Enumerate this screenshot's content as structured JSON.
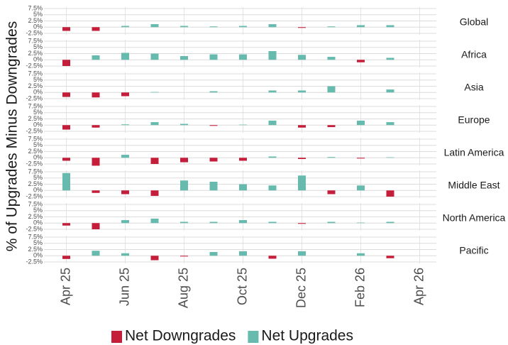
{
  "ylabel": "% of Upgrades Minus Downgrades",
  "chart_data": [
    {
      "type": "bar",
      "title": "Global",
      "x": [
        "2025-04",
        "2025-05",
        "2025-06",
        "2025-07",
        "2025-08",
        "2025-09",
        "2025-10",
        "2025-11",
        "2025-12",
        "2026-01",
        "2026-02",
        "2026-03"
      ],
      "xlim": [
        "2025-03",
        "2026-05"
      ],
      "xticks": [
        {
          "value": "2025-04",
          "label": "Apr 25"
        },
        {
          "value": "2025-06",
          "label": "Jun 25"
        },
        {
          "value": "2025-08",
          "label": "Aug 25"
        },
        {
          "value": "2025-10",
          "label": "Oct 25"
        },
        {
          "value": "2025-12",
          "label": "Dec 25"
        },
        {
          "value": "2026-02",
          "label": "Feb 26"
        },
        {
          "value": "2026-04",
          "label": "Apr 26"
        }
      ],
      "ylim": [
        -2.5,
        7.5
      ],
      "yticks": [
        {
          "value": -2.5,
          "label": "-2.5%"
        },
        {
          "value": 0,
          "label": "0%"
        },
        {
          "value": 2.5,
          "label": "2.5%"
        },
        {
          "value": 5,
          "label": "5%"
        },
        {
          "value": 7.5,
          "label": "7.5%"
        }
      ],
      "series": [
        {
          "name": "Net Downgrades",
          "color": "#c41e3a",
          "values": [
            -1.5,
            -1.5,
            null,
            null,
            null,
            null,
            null,
            null,
            -0.3,
            null,
            null,
            null
          ]
        },
        {
          "name": "Net Upgrades",
          "color": "#66bbae",
          "values": [
            null,
            null,
            0.5,
            1.2,
            0.5,
            0.3,
            0.5,
            1.2,
            null,
            0.3,
            0.8,
            0.8
          ]
        }
      ]
    },
    {
      "type": "bar",
      "title": "Africa",
      "x": [
        "2025-04",
        "2025-05",
        "2025-06",
        "2025-07",
        "2025-08",
        "2025-09",
        "2025-10",
        "2025-11",
        "2025-12",
        "2026-01",
        "2026-02",
        "2026-03"
      ],
      "xlim": [
        "2025-03",
        "2026-05"
      ],
      "xticks": [
        {
          "value": "2025-04",
          "label": "Apr 25"
        },
        {
          "value": "2025-06",
          "label": "Jun 25"
        },
        {
          "value": "2025-08",
          "label": "Aug 25"
        },
        {
          "value": "2025-10",
          "label": "Oct 25"
        },
        {
          "value": "2025-12",
          "label": "Dec 25"
        },
        {
          "value": "2026-02",
          "label": "Feb 26"
        },
        {
          "value": "2026-04",
          "label": "Apr 26"
        }
      ],
      "ylim": [
        -2.5,
        7.5
      ],
      "yticks": [
        {
          "value": -2.5,
          "label": "-2.5%"
        },
        {
          "value": 0,
          "label": "0%"
        },
        {
          "value": 2.5,
          "label": "2.5%"
        },
        {
          "value": 5,
          "label": "5%"
        },
        {
          "value": 7.5,
          "label": "7.5%"
        }
      ],
      "series": [
        {
          "name": "Net Downgrades",
          "color": "#c41e3a",
          "values": [
            -2.5,
            null,
            null,
            null,
            null,
            null,
            null,
            null,
            null,
            null,
            -1.0,
            null
          ]
        },
        {
          "name": "Net Upgrades",
          "color": "#66bbae",
          "values": [
            null,
            1.8,
            2.8,
            2.5,
            1.5,
            2.2,
            2.2,
            3.5,
            2.0,
            1.2,
            null,
            0.8
          ]
        }
      ]
    },
    {
      "type": "bar",
      "title": "Asia",
      "x": [
        "2025-04",
        "2025-05",
        "2025-06",
        "2025-07",
        "2025-08",
        "2025-09",
        "2025-10",
        "2025-11",
        "2025-12",
        "2026-01",
        "2026-02",
        "2026-03"
      ],
      "xlim": [
        "2025-03",
        "2026-05"
      ],
      "xticks": [
        {
          "value": "2025-04",
          "label": "Apr 25"
        },
        {
          "value": "2025-06",
          "label": "Jun 25"
        },
        {
          "value": "2025-08",
          "label": "Aug 25"
        },
        {
          "value": "2025-10",
          "label": "Oct 25"
        },
        {
          "value": "2025-12",
          "label": "Dec 25"
        },
        {
          "value": "2026-02",
          "label": "Feb 26"
        },
        {
          "value": "2026-04",
          "label": "Apr 26"
        }
      ],
      "ylim": [
        -2.5,
        7.5
      ],
      "yticks": [
        {
          "value": -2.5,
          "label": "-2.5%"
        },
        {
          "value": 0,
          "label": "0%"
        },
        {
          "value": 2.5,
          "label": "2.5%"
        },
        {
          "value": 5,
          "label": "5%"
        },
        {
          "value": 7.5,
          "label": "7.5%"
        }
      ],
      "series": [
        {
          "name": "Net Downgrades",
          "color": "#c41e3a",
          "values": [
            -1.8,
            -2.0,
            -1.5,
            null,
            null,
            null,
            null,
            null,
            null,
            null,
            null,
            null
          ]
        },
        {
          "name": "Net Upgrades",
          "color": "#66bbae",
          "values": [
            null,
            null,
            null,
            0.2,
            null,
            0.5,
            null,
            0.8,
            0.8,
            2.5,
            null,
            1.2
          ]
        }
      ]
    },
    {
      "type": "bar",
      "title": "Europe",
      "x": [
        "2025-04",
        "2025-05",
        "2025-06",
        "2025-07",
        "2025-08",
        "2025-09",
        "2025-10",
        "2025-11",
        "2025-12",
        "2026-01",
        "2026-02",
        "2026-03"
      ],
      "xlim": [
        "2025-03",
        "2026-05"
      ],
      "xticks": [
        {
          "value": "2025-04",
          "label": "Apr 25"
        },
        {
          "value": "2025-06",
          "label": "Jun 25"
        },
        {
          "value": "2025-08",
          "label": "Aug 25"
        },
        {
          "value": "2025-10",
          "label": "Oct 25"
        },
        {
          "value": "2025-12",
          "label": "Dec 25"
        },
        {
          "value": "2026-02",
          "label": "Feb 26"
        },
        {
          "value": "2026-04",
          "label": "Apr 26"
        }
      ],
      "ylim": [
        -2.5,
        7.5
      ],
      "yticks": [
        {
          "value": -2.5,
          "label": "-2.5%"
        },
        {
          "value": 0,
          "label": "0%"
        },
        {
          "value": 2.5,
          "label": "2.5%"
        },
        {
          "value": 5,
          "label": "5%"
        },
        {
          "value": 7.5,
          "label": "7.5%"
        }
      ],
      "series": [
        {
          "name": "Net Downgrades",
          "color": "#c41e3a",
          "values": [
            -1.8,
            -1.0,
            null,
            null,
            null,
            -0.3,
            null,
            null,
            -1.0,
            -0.8,
            null,
            null
          ]
        },
        {
          "name": "Net Upgrades",
          "color": "#66bbae",
          "values": [
            null,
            null,
            0.3,
            1.2,
            0.5,
            null,
            0.2,
            1.8,
            null,
            null,
            1.8,
            1.2
          ]
        }
      ]
    },
    {
      "type": "bar",
      "title": "Latin America",
      "x": [
        "2025-04",
        "2025-05",
        "2025-06",
        "2025-07",
        "2025-08",
        "2025-09",
        "2025-10",
        "2025-11",
        "2025-12",
        "2026-01",
        "2026-02",
        "2026-03"
      ],
      "xlim": [
        "2025-03",
        "2026-05"
      ],
      "xticks": [
        {
          "value": "2025-04",
          "label": "Apr 25"
        },
        {
          "value": "2025-06",
          "label": "Jun 25"
        },
        {
          "value": "2025-08",
          "label": "Aug 25"
        },
        {
          "value": "2025-10",
          "label": "Oct 25"
        },
        {
          "value": "2025-12",
          "label": "Dec 25"
        },
        {
          "value": "2026-02",
          "label": "Feb 26"
        },
        {
          "value": "2026-04",
          "label": "Apr 26"
        }
      ],
      "ylim": [
        -2.5,
        7.5
      ],
      "yticks": [
        {
          "value": -2.5,
          "label": "-2.5%"
        },
        {
          "value": 0,
          "label": "0%"
        },
        {
          "value": 2.5,
          "label": "2.5%"
        },
        {
          "value": 5,
          "label": "5%"
        },
        {
          "value": 7.5,
          "label": "7.5%"
        }
      ],
      "series": [
        {
          "name": "Net Downgrades",
          "color": "#c41e3a",
          "values": [
            -1.2,
            -3.2,
            null,
            -2.5,
            -1.8,
            -1.5,
            -1.2,
            null,
            -0.5,
            null,
            -0.3,
            null
          ]
        },
        {
          "name": "Net Upgrades",
          "color": "#66bbae",
          "values": [
            null,
            null,
            1.2,
            null,
            null,
            null,
            null,
            0.5,
            null,
            0.3,
            null,
            0.2
          ]
        }
      ]
    },
    {
      "type": "bar",
      "title": "Middle East",
      "x": [
        "2025-04",
        "2025-05",
        "2025-06",
        "2025-07",
        "2025-08",
        "2025-09",
        "2025-10",
        "2025-11",
        "2025-12",
        "2026-01",
        "2026-02",
        "2026-03"
      ],
      "xlim": [
        "2025-03",
        "2026-05"
      ],
      "xticks": [
        {
          "value": "2025-04",
          "label": "Apr 25"
        },
        {
          "value": "2025-06",
          "label": "Jun 25"
        },
        {
          "value": "2025-08",
          "label": "Aug 25"
        },
        {
          "value": "2025-10",
          "label": "Oct 25"
        },
        {
          "value": "2025-12",
          "label": "Dec 25"
        },
        {
          "value": "2026-02",
          "label": "Feb 26"
        },
        {
          "value": "2026-04",
          "label": "Apr 26"
        }
      ],
      "ylim": [
        -2.5,
        7.5
      ],
      "yticks": [
        {
          "value": -2.5,
          "label": "-2.5%"
        },
        {
          "value": 0,
          "label": "0%"
        },
        {
          "value": 2.5,
          "label": "2.5%"
        },
        {
          "value": 5,
          "label": "5%"
        },
        {
          "value": 7.5,
          "label": "7.5%"
        }
      ],
      "series": [
        {
          "name": "Net Downgrades",
          "color": "#c41e3a",
          "values": [
            null,
            -1.0,
            -1.5,
            -2.2,
            null,
            null,
            null,
            null,
            null,
            -1.5,
            null,
            -2.5
          ]
        },
        {
          "name": "Net Upgrades",
          "color": "#66bbae",
          "values": [
            7.0,
            null,
            null,
            null,
            4.0,
            3.5,
            2.5,
            2.0,
            6.0,
            null,
            2.0,
            null
          ]
        }
      ]
    },
    {
      "type": "bar",
      "title": "North America",
      "x": [
        "2025-04",
        "2025-05",
        "2025-06",
        "2025-07",
        "2025-08",
        "2025-09",
        "2025-10",
        "2025-11",
        "2025-12",
        "2026-01",
        "2026-02",
        "2026-03"
      ],
      "xlim": [
        "2025-03",
        "2026-05"
      ],
      "xticks": [
        {
          "value": "2025-04",
          "label": "Apr 25"
        },
        {
          "value": "2025-06",
          "label": "Jun 25"
        },
        {
          "value": "2025-08",
          "label": "Aug 25"
        },
        {
          "value": "2025-10",
          "label": "Oct 25"
        },
        {
          "value": "2025-12",
          "label": "Dec 25"
        },
        {
          "value": "2026-02",
          "label": "Feb 26"
        },
        {
          "value": "2026-04",
          "label": "Apr 26"
        }
      ],
      "ylim": [
        -2.5,
        7.5
      ],
      "yticks": [
        {
          "value": -2.5,
          "label": "-2.5%"
        },
        {
          "value": 0,
          "label": "0%"
        },
        {
          "value": 2.5,
          "label": "2.5%"
        },
        {
          "value": 5,
          "label": "5%"
        },
        {
          "value": 7.5,
          "label": "7.5%"
        }
      ],
      "series": [
        {
          "name": "Net Downgrades",
          "color": "#c41e3a",
          "values": [
            -1.0,
            -2.5,
            null,
            null,
            null,
            null,
            null,
            null,
            -0.3,
            null,
            null,
            null
          ]
        },
        {
          "name": "Net Upgrades",
          "color": "#66bbae",
          "values": [
            null,
            null,
            1.2,
            1.8,
            0.5,
            0.5,
            1.2,
            0.5,
            null,
            0.5,
            0.2,
            0.5
          ]
        }
      ]
    },
    {
      "type": "bar",
      "title": "Pacific",
      "x": [
        "2025-04",
        "2025-05",
        "2025-06",
        "2025-07",
        "2025-08",
        "2025-09",
        "2025-10",
        "2025-11",
        "2025-12",
        "2026-01",
        "2026-02",
        "2026-03"
      ],
      "xlim": [
        "2025-03",
        "2026-05"
      ],
      "xticks": [
        {
          "value": "2025-04",
          "label": "Apr 25"
        },
        {
          "value": "2025-06",
          "label": "Jun 25"
        },
        {
          "value": "2025-08",
          "label": "Aug 25"
        },
        {
          "value": "2025-10",
          "label": "Oct 25"
        },
        {
          "value": "2025-12",
          "label": "Dec 25"
        },
        {
          "value": "2026-02",
          "label": "Feb 26"
        },
        {
          "value": "2026-04",
          "label": "Apr 26"
        }
      ],
      "ylim": [
        -2.5,
        7.5
      ],
      "yticks": [
        {
          "value": -2.5,
          "label": "-2.5%"
        },
        {
          "value": 0,
          "label": "0%"
        },
        {
          "value": 2.5,
          "label": "2.5%"
        },
        {
          "value": 5,
          "label": "5%"
        },
        {
          "value": 7.5,
          "label": "7.5%"
        }
      ],
      "series": [
        {
          "name": "Net Downgrades",
          "color": "#c41e3a",
          "values": [
            -1.3,
            null,
            null,
            -1.8,
            -0.3,
            null,
            null,
            -1.2,
            null,
            null,
            null,
            -1.0
          ]
        },
        {
          "name": "Net Upgrades",
          "color": "#66bbae",
          "values": [
            null,
            2.0,
            1.0,
            null,
            null,
            1.5,
            1.8,
            null,
            1.8,
            null,
            1.0,
            null
          ]
        }
      ]
    }
  ]
}
